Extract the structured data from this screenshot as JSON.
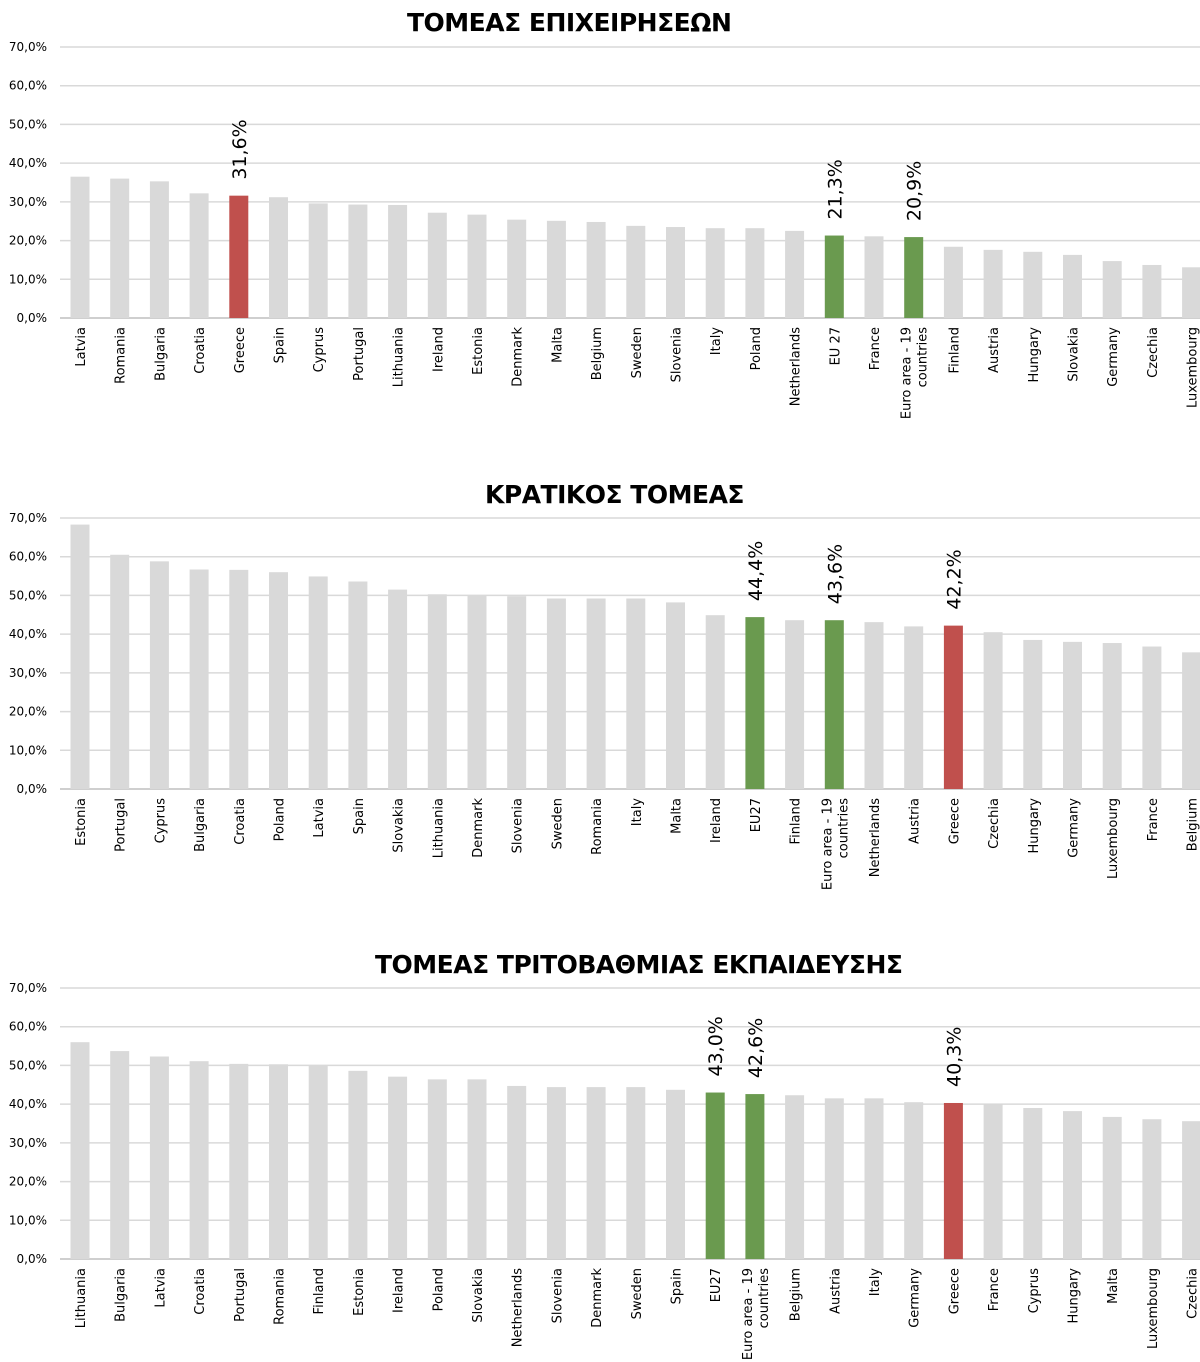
{
  "chart_data": [
    {
      "type": "bar",
      "title": "ΤΟΜΕΑΣ ΕΠΙΧΕΙΡΗΣΕΩΝ",
      "categories": [
        "Latvia",
        "Romania",
        "Bulgaria",
        "Croatia",
        "Greece",
        "Spain",
        "Cyprus",
        "Portugal",
        "Lithuania",
        "Ireland",
        "Estonia",
        "Denmark",
        "Malta",
        "Belgium",
        "Sweden",
        "Slovenia",
        "Italy",
        "Poland",
        "Netherlands",
        "EU 27",
        "France",
        "Euro area - 19 countries",
        "Finland",
        "Austria",
        "Hungary",
        "Slovakia",
        "Germany",
        "Czechia",
        "Luxembourg"
      ],
      "values": [
        36.5,
        36.0,
        35.3,
        32.2,
        31.6,
        31.2,
        29.6,
        29.3,
        29.2,
        27.2,
        26.7,
        25.4,
        25.1,
        24.8,
        23.8,
        23.5,
        23.2,
        23.2,
        22.5,
        21.3,
        21.1,
        20.9,
        18.4,
        17.6,
        17.1,
        16.3,
        14.7,
        13.7,
        13.1
      ],
      "data_labels": {
        "4": "31,6%",
        "19": "21,3%",
        "21": "20,9%"
      },
      "highlight": {
        "4": "#c0504d",
        "19": "#6a9a4f",
        "21": "#6a9a4f"
      },
      "ylim": [
        0,
        70
      ],
      "yticks": [
        "0,0%",
        "10,0%",
        "20,0%",
        "30,0%",
        "40,0%",
        "50,0%",
        "60,0%",
        "70,0%"
      ],
      "grid": true,
      "xlabel": "",
      "ylabel": ""
    },
    {
      "type": "bar",
      "title": "ΚΡΑΤΙΚΟΣ ΤΟΜΕΑΣ",
      "categories": [
        "Estonia",
        "Portugal",
        "Cyprus",
        "Bulgaria",
        "Croatia",
        "Poland",
        "Latvia",
        "Spain",
        "Slovakia",
        "Lithuania",
        "Denmark",
        "Slovenia",
        "Sweden",
        "Romania",
        "Italy",
        "Malta",
        "Ireland",
        "EU27",
        "Finland",
        "Euro area - 19 countries",
        "Netherlands",
        "Austria",
        "Greece",
        "Czechia",
        "Hungary",
        "Germany",
        "Luxembourg",
        "France",
        "Belgium"
      ],
      "values": [
        68.3,
        60.5,
        58.8,
        56.7,
        56.6,
        56.0,
        54.9,
        53.6,
        51.5,
        50.3,
        50.1,
        49.8,
        49.2,
        49.2,
        49.2,
        48.2,
        44.9,
        44.4,
        43.6,
        43.6,
        43.1,
        42.0,
        42.2,
        40.5,
        38.5,
        38.0,
        37.7,
        36.8,
        35.3
      ],
      "data_labels": {
        "17": "44,4%",
        "19": "43,6%",
        "22": "42,2%"
      },
      "highlight": {
        "17": "#6a9a4f",
        "19": "#6a9a4f",
        "22": "#c0504d"
      },
      "ylim": [
        0,
        70
      ],
      "yticks": [
        "0,0%",
        "10,0%",
        "20,0%",
        "30,0%",
        "40,0%",
        "50,0%",
        "60,0%",
        "70,0%"
      ],
      "grid": true,
      "xlabel": "",
      "ylabel": ""
    },
    {
      "type": "bar",
      "title": "ΤΟΜΕΑΣ ΤΡΙΤΟΒΑΘΜΙΑΣ ΕΚΠΑΙΔΕΥΣΗΣ",
      "categories": [
        "Lithuania",
        "Bulgaria",
        "Latvia",
        "Croatia",
        "Portugal",
        "Romania",
        "Finland",
        "Estonia",
        "Ireland",
        "Poland",
        "Slovakia",
        "Netherlands",
        "Slovenia",
        "Denmark",
        "Sweden",
        "Spain",
        "EU27",
        "Euro area - 19 countries",
        "Belgium",
        "Austria",
        "Italy",
        "Germany",
        "Greece",
        "France",
        "Cyprus",
        "Hungary",
        "Malta",
        "Luxembourg",
        "Czechia"
      ],
      "values": [
        56.0,
        53.7,
        52.3,
        51.1,
        50.4,
        50.3,
        50.0,
        48.6,
        47.1,
        46.4,
        46.4,
        44.7,
        44.4,
        44.4,
        44.4,
        43.7,
        43.0,
        42.6,
        42.3,
        41.5,
        41.5,
        40.5,
        40.3,
        40.0,
        39.0,
        38.2,
        36.7,
        36.1,
        35.6
      ],
      "data_labels": {
        "16": "43,0%",
        "17": "42,6%",
        "22": "40,3%"
      },
      "highlight": {
        "16": "#6a9a4f",
        "17": "#6a9a4f",
        "22": "#c0504d"
      },
      "ylim": [
        0,
        70
      ],
      "yticks": [
        "0,0%",
        "10,0%",
        "20,0%",
        "30,0%",
        "40,0%",
        "50,0%",
        "60,0%",
        "70,0%"
      ],
      "grid": true,
      "xlabel": "",
      "ylabel": ""
    }
  ],
  "colors": {
    "default_bar": "#d9d9d9",
    "gridline": "#d9d9d9",
    "axis": "#bfbfbf",
    "green": "#6a9a4f",
    "red": "#c0504d"
  }
}
